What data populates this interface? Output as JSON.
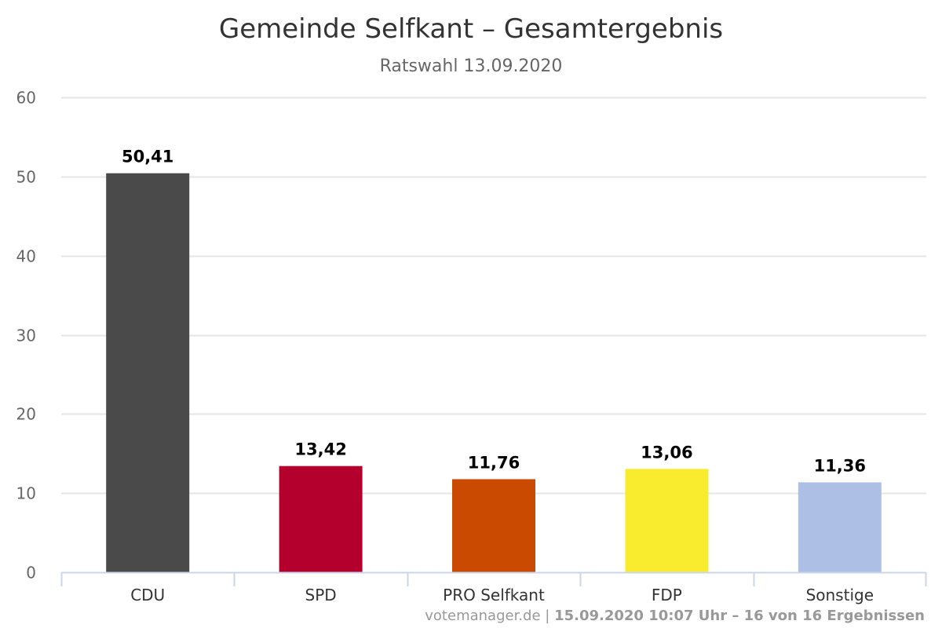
{
  "chart_data": {
    "type": "bar",
    "title": "Gemeinde Selfkant – Gesamtergebnis",
    "subtitle": "Ratswahl 13.09.2020",
    "categories": [
      "CDU",
      "SPD",
      "PRO Selfkant",
      "FDP",
      "Sonstige"
    ],
    "values": [
      50.41,
      13.42,
      11.76,
      13.06,
      11.36
    ],
    "value_labels": [
      "50,41",
      "13,42",
      "11,76",
      "13,06",
      "11,36"
    ],
    "colors": [
      "#4a4a4a",
      "#b3002c",
      "#c94a00",
      "#f9ec2f",
      "#adbfe4"
    ],
    "ylim": [
      0,
      60
    ],
    "yticks": [
      0,
      10,
      20,
      30,
      40,
      50,
      60
    ],
    "xlabel": "",
    "ylabel": "",
    "grid": true,
    "legend": "none"
  },
  "credits": {
    "site": "votemanager.de",
    "separator": " | ",
    "info": "15.09.2020 10:07 Uhr – 16 von 16 Ergebnissen"
  }
}
